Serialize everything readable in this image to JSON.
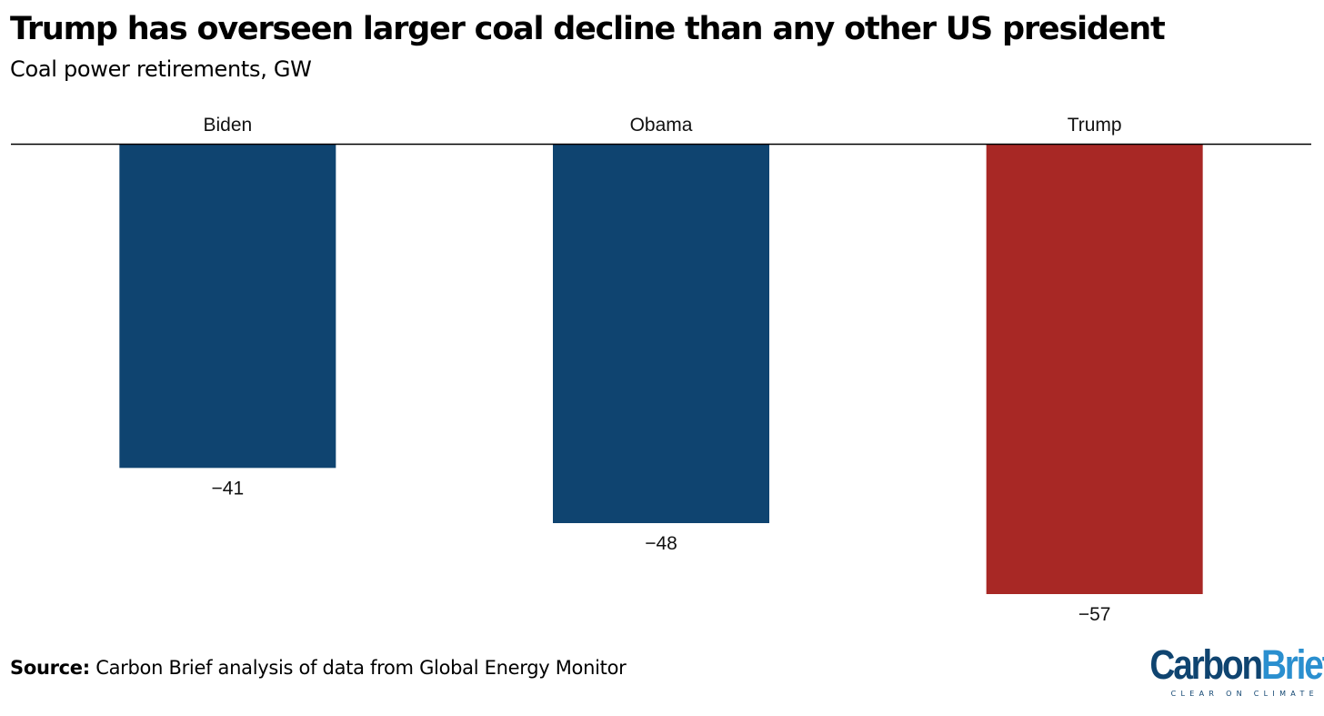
{
  "chart_data": {
    "type": "bar",
    "title": "Trump has overseen larger coal decline than any other US president",
    "subtitle": "Coal power retirements, GW",
    "categories": [
      "Biden",
      "Obama",
      "Trump"
    ],
    "values": [
      -41,
      -48,
      -57
    ],
    "value_labels": [
      "−41",
      "−48",
      "−57"
    ],
    "colors": [
      "#0f4470",
      "#0f4470",
      "#a82825"
    ],
    "xlabel": "",
    "ylabel": "",
    "ylim": [
      -57,
      0
    ],
    "grid": false,
    "category_label_position": "top",
    "value_label_position": "below-bar"
  },
  "source": {
    "label": "Source:",
    "text": "Carbon Brief analysis of data from Global Energy Monitor"
  },
  "logo": {
    "word_part1": "Carbon",
    "word_part2": "Brief",
    "tagline": "CLEAR ON CLIMATE"
  }
}
